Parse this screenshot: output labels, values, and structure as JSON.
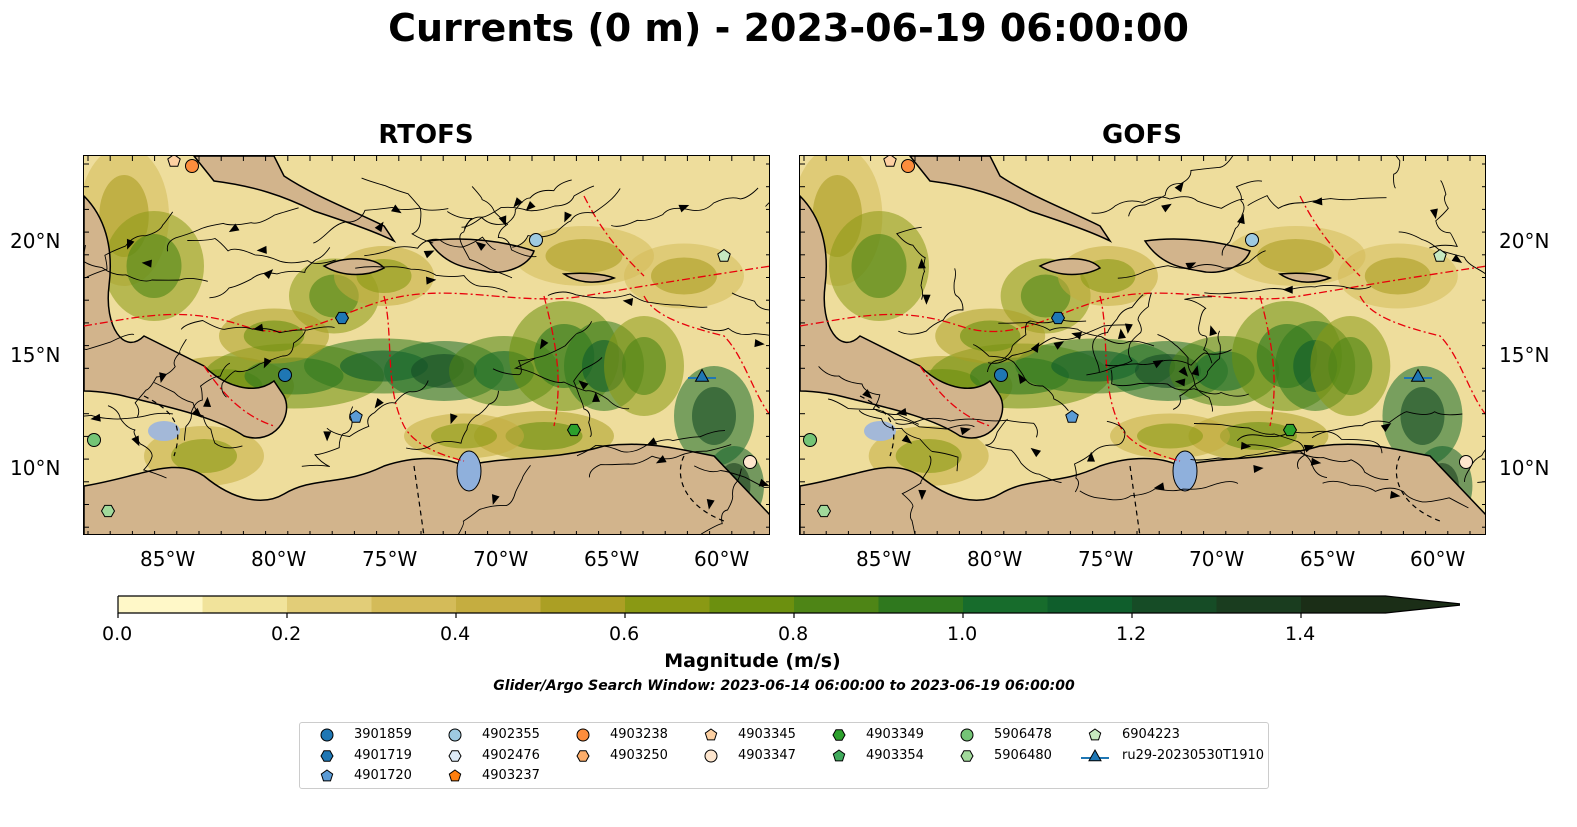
{
  "title": "Currents (0 m) - 2023-06-19 06:00:00",
  "panels": [
    {
      "title": "RTOFS"
    },
    {
      "title": "GOFS"
    }
  ],
  "lat_ticks": [
    "20°N",
    "15°N",
    "10°N"
  ],
  "lon_ticks": [
    "85°W",
    "80°W",
    "75°W",
    "70°W",
    "65°W",
    "60°W"
  ],
  "colorbar": {
    "label": "Magnitude (m/s)",
    "ticks": [
      "0.0",
      "0.2",
      "0.4",
      "0.6",
      "0.8",
      "1.0",
      "1.2",
      "1.4"
    ],
    "colors": [
      "#fff8c8",
      "#f1e39b",
      "#e2cd78",
      "#d4bb59",
      "#c5ad40",
      "#ab9f24",
      "#8a9914",
      "#6c900f",
      "#4e8516",
      "#2f781e",
      "#176c2c",
      "#0f5e2c",
      "#164c26",
      "#1a3d1f",
      "#1b2e17"
    ]
  },
  "search_window": "Glider/Argo Search Window: 2023-06-14 06:00:00 to 2023-06-19 06:00:00",
  "legend": [
    {
      "label": "3901859",
      "marker": "circle",
      "color": "#1f77b4"
    },
    {
      "label": "4901719",
      "marker": "hexagon",
      "color": "#1f77b4"
    },
    {
      "label": "4901720",
      "marker": "pentagon",
      "color": "#5b9bd5"
    },
    {
      "label": "4902355",
      "marker": "circle",
      "color": "#9ecae1"
    },
    {
      "label": "4902476",
      "marker": "hexagon",
      "color": "#deebf7"
    },
    {
      "label": "4903237",
      "marker": "pentagon",
      "color": "#ff7f0e"
    },
    {
      "label": "4903238",
      "marker": "circle",
      "color": "#fd8d3c"
    },
    {
      "label": "4903250",
      "marker": "hexagon",
      "color": "#fdae6b"
    },
    {
      "label": "4903345",
      "marker": "pentagon",
      "color": "#fdd0a2"
    },
    {
      "label": "4903347",
      "marker": "circle",
      "color": "#fee6ce"
    },
    {
      "label": "4903349",
      "marker": "hexagon",
      "color": "#2ca02c"
    },
    {
      "label": "4903354",
      "marker": "pentagon",
      "color": "#41ab5d"
    },
    {
      "label": "5906478",
      "marker": "circle",
      "color": "#74c476"
    },
    {
      "label": "5906480",
      "marker": "hexagon",
      "color": "#a1d99b"
    },
    {
      "label": "6904223",
      "marker": "pentagon",
      "color": "#c7e9c0"
    },
    {
      "label": "ru29-20230530T1910",
      "marker": "triangle-line",
      "color": "#1f77b4"
    }
  ]
}
